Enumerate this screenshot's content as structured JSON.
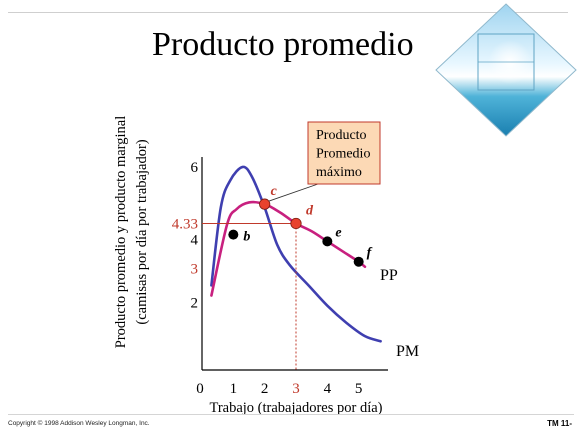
{
  "slide": {
    "title": "Producto promedio",
    "copyright": "Copyright © 1998 Addison Wesley Longman, Inc.",
    "slide_number": "TM 11-"
  },
  "colors": {
    "pm_curve": "#3f3fb0",
    "pp_curve": "#c8207f",
    "point_red": "#e8432e",
    "point_black": "#000000",
    "reference_red": "#c0392b",
    "callout_fill": "#fcd9b5",
    "callout_border": "#c0392b"
  },
  "chart_data": {
    "type": "line",
    "xlabel": "Trabajo (trabajadores por día)",
    "ylabel": "Producto promedio y producto marginal",
    "ylabel2": "(camisas por día por trabajador)",
    "xlim": [
      0,
      6
    ],
    "ylim": [
      0,
      6.5
    ],
    "x_ticks": [
      "0",
      "1",
      "2",
      "3",
      "4",
      "5"
    ],
    "y_ticks": [
      "2",
      "3",
      "4",
      "4.33",
      "6"
    ],
    "series": [
      {
        "name": "PM",
        "points": [
          [
            0.3,
            2.5
          ],
          [
            0.6,
            4.8
          ],
          [
            0.9,
            5.6
          ],
          [
            1.3,
            6.0
          ],
          [
            1.6,
            5.7
          ],
          [
            2.0,
            4.8
          ],
          [
            2.4,
            3.7
          ],
          [
            2.8,
            3.1
          ],
          [
            3.4,
            2.5
          ],
          [
            4.0,
            1.9
          ],
          [
            4.6,
            1.4
          ],
          [
            5.2,
            1.0
          ],
          [
            5.7,
            0.85
          ]
        ]
      },
      {
        "name": "PP",
        "points": [
          [
            0.3,
            2.2
          ],
          [
            0.8,
            4.3
          ],
          [
            1.1,
            4.75
          ],
          [
            1.5,
            4.95
          ],
          [
            2.0,
            4.9
          ],
          [
            2.5,
            4.65
          ],
          [
            3.0,
            4.33
          ],
          [
            3.5,
            4.1
          ],
          [
            4.0,
            3.8
          ],
          [
            4.5,
            3.5
          ],
          [
            5.0,
            3.2
          ],
          [
            5.2,
            3.05
          ]
        ]
      }
    ],
    "points": [
      {
        "label": "b",
        "x": 1.0,
        "y": 4.0,
        "kind": "black"
      },
      {
        "label": "c",
        "x": 2.0,
        "y": 4.9,
        "kind": "red"
      },
      {
        "label": "d",
        "x": 3.0,
        "y": 4.33,
        "kind": "red"
      },
      {
        "label": "e",
        "x": 4.0,
        "y": 3.8,
        "kind": "black"
      },
      {
        "label": "f",
        "x": 5.0,
        "y": 3.2,
        "kind": "black"
      }
    ],
    "reference": {
      "x": 3,
      "y": 4.33
    },
    "callout": [
      "Producto",
      "Promedio",
      "máximo"
    ],
    "series_labels": {
      "pp": "PP",
      "pm": "PM"
    }
  }
}
